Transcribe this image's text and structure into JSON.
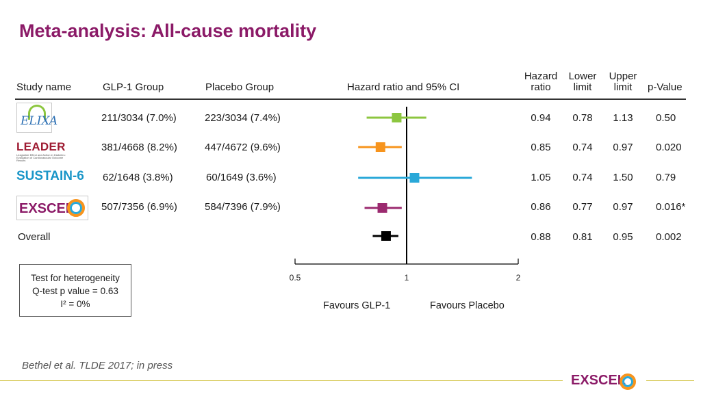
{
  "title": "Meta-analysis: All-cause mortality",
  "headers": {
    "study": "Study name",
    "glp1": "GLP-1 Group",
    "placebo": "Placebo Group",
    "plot": "Hazard ratio and 95% CI",
    "hr_line1": "Hazard",
    "hr_line2": "ratio",
    "lower_line1": "Lower",
    "lower_line2": "limit",
    "upper_line1": "Upper",
    "upper_line2": "limit",
    "pvalue": "p-Value"
  },
  "logos": {
    "elixa": "ELIXA",
    "leader": "LEADER",
    "leader_sub1": "Liraglutide Effect and Action in Diabetes:",
    "leader_sub2": "Evaluation of Cardiovascular Outcome Results",
    "sustain": "SUSTAIN-6",
    "exscel": "EXSCEL"
  },
  "rows": [
    {
      "study": "ELIXA",
      "glp1": "211/3034 (7.0%)",
      "placebo": "223/3034 (7.4%)",
      "hr": "0.94",
      "lower": "0.78",
      "upper": "1.13",
      "p": "0.50"
    },
    {
      "study": "LEADER",
      "glp1": "381/4668 (8.2%)",
      "placebo": "447/4672 (9.6%)",
      "hr": "0.85",
      "lower": "0.74",
      "upper": "0.97",
      "p": "0.020"
    },
    {
      "study": "SUSTAIN-6",
      "glp1": "62/1648 (3.8%)",
      "placebo": "60/1649 (3.6%)",
      "hr": "1.05",
      "lower": "0.74",
      "upper": "1.50",
      "p": "0.79"
    },
    {
      "study": "EXSCEL",
      "glp1": "507/7356 (6.9%)",
      "placebo": "584/7396 (7.9%)",
      "hr": "0.86",
      "lower": "0.77",
      "upper": "0.97",
      "p": "0.016*"
    },
    {
      "study": "Overall",
      "glp1": "",
      "placebo": "",
      "hr": "0.88",
      "lower": "0.81",
      "upper": "0.95",
      "p": "0.002"
    }
  ],
  "heterogeneity": {
    "line1": "Test for heterogeneity",
    "line2": "Q-test p value = 0.63",
    "line3": "I² = 0%"
  },
  "footnote": "Bethel et al.  TLDE 2017; in press",
  "footer_logo": "EXSCEL",
  "chart_data": {
    "type": "forest",
    "title": "Hazard ratio and 95% CI",
    "scale": "log",
    "xlim": [
      0.5,
      2
    ],
    "reference": 1,
    "ticks": [
      {
        "value": 0.5,
        "label": "0.5"
      },
      {
        "value": 1,
        "label": "1"
      },
      {
        "value": 2,
        "label": "2"
      }
    ],
    "xlabel_left": "Favours GLP-1",
    "xlabel_right": "Favours Placebo",
    "series": [
      {
        "name": "ELIXA",
        "hr": 0.94,
        "lower": 0.78,
        "upper": 1.13,
        "color": "#8cc63f"
      },
      {
        "name": "LEADER",
        "hr": 0.85,
        "lower": 0.74,
        "upper": 0.97,
        "color": "#f7941d"
      },
      {
        "name": "SUSTAIN-6",
        "hr": 1.05,
        "lower": 0.74,
        "upper": 1.5,
        "color": "#29a8d8"
      },
      {
        "name": "EXSCEL",
        "hr": 0.86,
        "lower": 0.77,
        "upper": 0.97,
        "color": "#9b2a6f"
      },
      {
        "name": "Overall",
        "hr": 0.88,
        "lower": 0.81,
        "upper": 0.95,
        "color": "#000000"
      }
    ]
  }
}
